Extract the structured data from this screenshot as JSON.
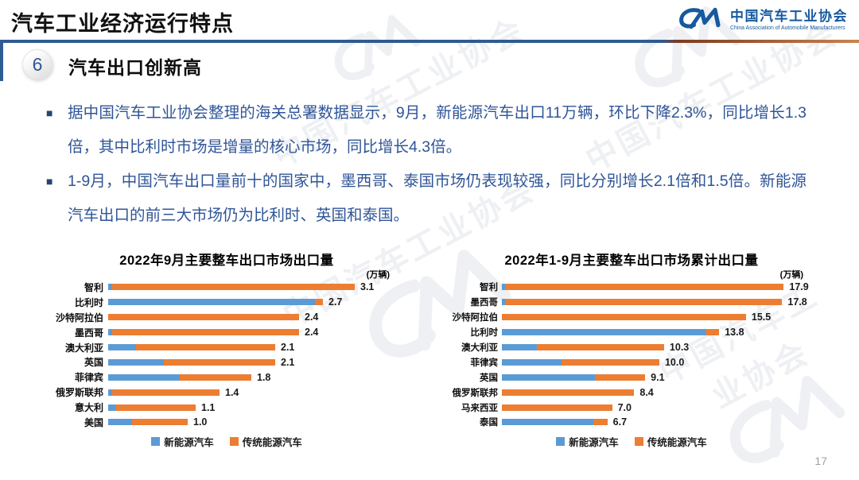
{
  "header": {
    "title": "汽车工业经济运行特点",
    "logo": {
      "mark": "CM",
      "name_cn": "中国汽车工业协会",
      "name_en": "China Association of Automobile Manufacturers"
    }
  },
  "section": {
    "badge": "6",
    "heading": "汽车出口创新高"
  },
  "bullets": [
    {
      "text": "据中国汽车工业协会整理的海关总署数据显示，9月，新能源汽车出口11万辆，环比下降2.3%，同比增长1.3倍，其中比利时市场是增量的核心市场，同比增长4.3倍。"
    },
    {
      "text": "1-9月，中国汽车出口量前十的国家中，墨西哥、泰国市场仍表现较强，同比分别增长2.1倍和1.5倍。新能源汽车出口的前三大市场仍为比利时、英国和泰国。"
    }
  ],
  "chart_data": [
    {
      "type": "bar",
      "orientation": "horizontal",
      "stacked": true,
      "title": "2022年9月主要整车出口市场出口量",
      "unit_label": "(万辆)",
      "categories": [
        "智利",
        "比利时",
        "沙特阿拉伯",
        "墨西哥",
        "澳大利亚",
        "英国",
        "菲律宾",
        "俄罗斯联邦",
        "意大利",
        "美国"
      ],
      "value_labels": [
        "3.1",
        "2.7",
        "2.4",
        "2.4",
        "2.1",
        "2.1",
        "1.8",
        "1.4",
        "1.1",
        "1.0"
      ],
      "totals": [
        3.1,
        2.7,
        2.4,
        2.4,
        2.1,
        2.1,
        1.8,
        1.4,
        1.1,
        1.0
      ],
      "series": [
        {
          "name": "新能源汽车",
          "color": "#5B9BD5",
          "values": [
            0.05,
            2.6,
            0,
            0.05,
            0.35,
            0.7,
            0.9,
            0.05,
            0.1,
            0.3
          ]
        },
        {
          "name": "传统能源汽车",
          "color": "#ED7D31",
          "values": [
            3.05,
            0.1,
            2.4,
            2.35,
            1.75,
            1.4,
            0.9,
            1.35,
            1.0,
            0.7
          ]
        }
      ],
      "xlim": [
        0,
        3.5
      ],
      "grid": false,
      "legend_position": "bottom"
    },
    {
      "type": "bar",
      "orientation": "horizontal",
      "stacked": true,
      "title": "2022年1-9月主要整车出口市场累计出口量",
      "unit_label": "(万辆)",
      "categories": [
        "智利",
        "墨西哥",
        "沙特阿拉伯",
        "比利时",
        "澳大利亚",
        "菲律宾",
        "英国",
        "俄罗斯联邦",
        "马来西亚",
        "泰国"
      ],
      "value_labels": [
        "17.9",
        "17.8",
        "15.5",
        "13.8",
        "10.3",
        "10.0",
        "9.1",
        "8.4",
        "7.0",
        "6.7"
      ],
      "totals": [
        17.9,
        17.8,
        15.5,
        13.8,
        10.3,
        10.0,
        9.1,
        8.4,
        7.0,
        6.7
      ],
      "series": [
        {
          "name": "新能源汽车",
          "color": "#5B9BD5",
          "values": [
            0.2,
            0.2,
            0,
            13.0,
            2.2,
            3.8,
            5.9,
            0,
            0,
            5.8
          ]
        },
        {
          "name": "传统能源汽车",
          "color": "#ED7D31",
          "values": [
            17.7,
            17.6,
            15.5,
            0.8,
            8.1,
            6.2,
            3.2,
            8.4,
            7.0,
            0.9
          ]
        }
      ],
      "xlim": [
        0,
        20
      ],
      "grid": false,
      "legend_position": "bottom"
    }
  ],
  "footer": {
    "page_number": "17"
  },
  "colors": {
    "nev_blue": "#5B9BD5",
    "traditional_orange": "#ED7D31",
    "body_text_blue": "#2F5597",
    "header_rule_blue": "#2F5B93",
    "header_rule_orange": "#C98350",
    "logo_blue": "#16599F"
  }
}
